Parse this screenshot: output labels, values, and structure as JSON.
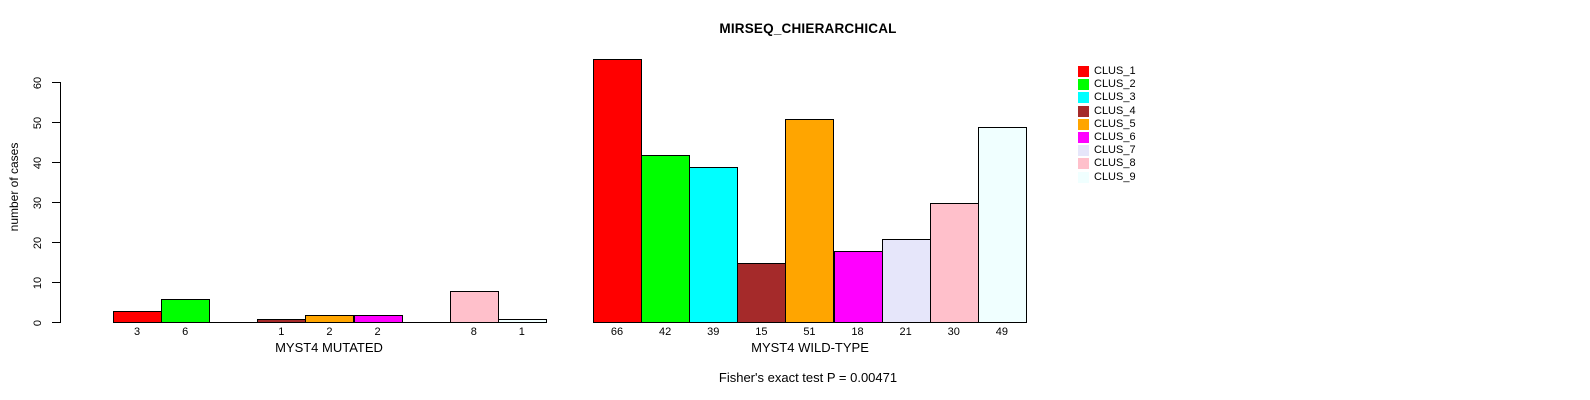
{
  "title": "MIRSEQ_CHIERARCHICAL",
  "chart_data": {
    "type": "bar",
    "title": "MIRSEQ_CHIERARCHICAL",
    "ylabel": "number of cases",
    "ylim": [
      0,
      66
    ],
    "yticks": [
      0,
      10,
      20,
      30,
      40,
      50,
      60
    ],
    "grid": false,
    "legend_position": "right",
    "series": [
      {
        "name": "CLUS_1",
        "color": "#FF0000"
      },
      {
        "name": "CLUS_2",
        "color": "#00FF00"
      },
      {
        "name": "CLUS_3",
        "color": "#00FFFF"
      },
      {
        "name": "CLUS_4",
        "color": "#A52A2A"
      },
      {
        "name": "CLUS_5",
        "color": "#FFA500"
      },
      {
        "name": "CLUS_6",
        "color": "#FF00FF"
      },
      {
        "name": "CLUS_7",
        "color": "#E6E6FA"
      },
      {
        "name": "CLUS_8",
        "color": "#FFC0CB"
      },
      {
        "name": "CLUS_9",
        "color": "#F0FFFF"
      }
    ],
    "groups": [
      {
        "label": "MYST4 MUTATED",
        "values": [
          3,
          6,
          0,
          1,
          2,
          2,
          0,
          8,
          1
        ]
      },
      {
        "label": "MYST4 WILD-TYPE",
        "values": [
          66,
          42,
          39,
          15,
          51,
          18,
          21,
          30,
          49
        ]
      }
    ],
    "annotation": "Fisher's exact test P = 0.00471"
  },
  "colors": {
    "background": "#FFFFFF",
    "text": "#000000",
    "axis": "#000000"
  }
}
